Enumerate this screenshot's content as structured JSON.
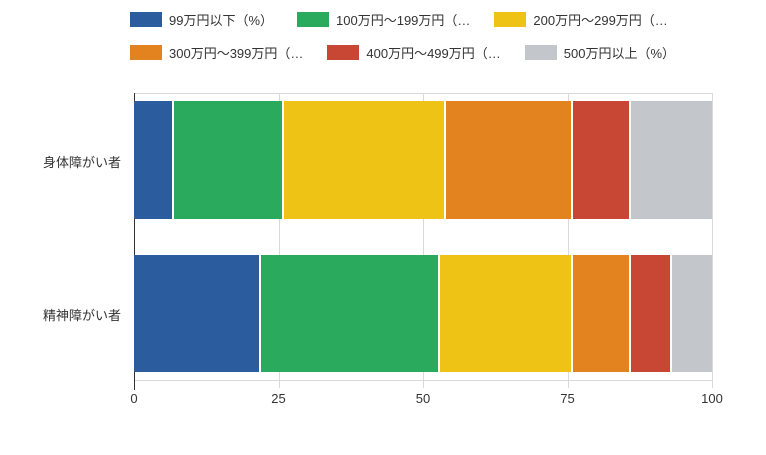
{
  "chart_data": {
    "type": "bar",
    "stacked": true,
    "orientation": "horizontal",
    "title": "",
    "categories": [
      "身体障がい者",
      "精神障がい者"
    ],
    "series": [
      {
        "name": "99万円以下（%）",
        "color": "#2b5c9d",
        "values": [
          7,
          22
        ]
      },
      {
        "name": "100万円～199万円（…",
        "color": "#2aaa5d",
        "values": [
          19,
          31
        ]
      },
      {
        "name": "200万円～299万円（…",
        "color": "#efc316",
        "values": [
          28,
          23
        ]
      },
      {
        "name": "300万円～399万円（…",
        "color": "#e2831f",
        "values": [
          22,
          10
        ]
      },
      {
        "name": "400万円～499万円（…",
        "color": "#c74634",
        "values": [
          10,
          7
        ]
      },
      {
        "name": "500万円以上（%）",
        "color": "#c3c6ca",
        "values": [
          14,
          7
        ]
      }
    ],
    "xlim": [
      0,
      100
    ],
    "x_ticks": [
      0,
      25,
      50,
      75,
      100
    ],
    "grid": true,
    "legend_position": "top",
    "axis_color": "#333333",
    "gridline_color": "#d9d9d9",
    "background_color": "#ffffff"
  }
}
